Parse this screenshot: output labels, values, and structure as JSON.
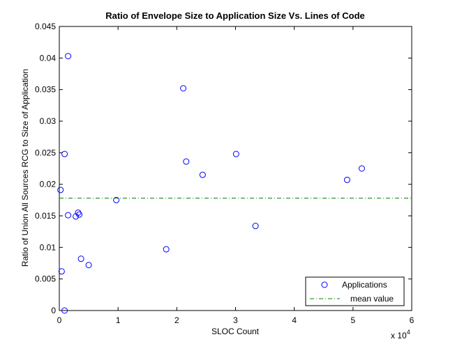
{
  "chart_data": {
    "type": "scatter",
    "title": "Ratio of Envelope Size to Application Size Vs. Lines of Code",
    "xlabel": "SLOC Count",
    "ylabel": "Ratio of Union All Sources RCG to Size of Application",
    "x_multiplier_label": "x 10",
    "x_multiplier_exponent": "4",
    "xlim": [
      0,
      60000
    ],
    "ylim": [
      0,
      0.045
    ],
    "x_ticks": [
      0,
      10000,
      20000,
      30000,
      40000,
      50000,
      60000
    ],
    "x_tick_labels": [
      "0",
      "1",
      "2",
      "3",
      "4",
      "5",
      "6"
    ],
    "y_ticks": [
      0,
      0.005,
      0.01,
      0.015,
      0.02,
      0.025,
      0.03,
      0.035,
      0.04,
      0.045
    ],
    "y_tick_labels": [
      "0",
      "0.005",
      "0.01",
      "0.015",
      "0.02",
      "0.025",
      "0.03",
      "0.035",
      "0.04",
      "0.045"
    ],
    "grid": false,
    "legend_position": "bottom-right",
    "series": [
      {
        "name": "Applications",
        "marker": "circle",
        "color": "#0000ff",
        "points": [
          {
            "x": 200,
            "y": 0.0191
          },
          {
            "x": 400,
            "y": 0.0062
          },
          {
            "x": 900,
            "y": 0.0
          },
          {
            "x": 900,
            "y": 0.0248
          },
          {
            "x": 1500,
            "y": 0.0403
          },
          {
            "x": 1500,
            "y": 0.0151
          },
          {
            "x": 2800,
            "y": 0.0149
          },
          {
            "x": 3200,
            "y": 0.0155
          },
          {
            "x": 3400,
            "y": 0.0152
          },
          {
            "x": 3700,
            "y": 0.0082
          },
          {
            "x": 5000,
            "y": 0.0072
          },
          {
            "x": 9700,
            "y": 0.0175
          },
          {
            "x": 18200,
            "y": 0.0097
          },
          {
            "x": 21100,
            "y": 0.0352
          },
          {
            "x": 21600,
            "y": 0.0236
          },
          {
            "x": 24400,
            "y": 0.0215
          },
          {
            "x": 30100,
            "y": 0.0248
          },
          {
            "x": 33400,
            "y": 0.0134
          },
          {
            "x": 49000,
            "y": 0.0207
          },
          {
            "x": 51500,
            "y": 0.0225
          }
        ]
      },
      {
        "name": "mean value",
        "type": "hline",
        "color": "#008000",
        "style": "dash-dot",
        "y": 0.0178
      }
    ]
  }
}
